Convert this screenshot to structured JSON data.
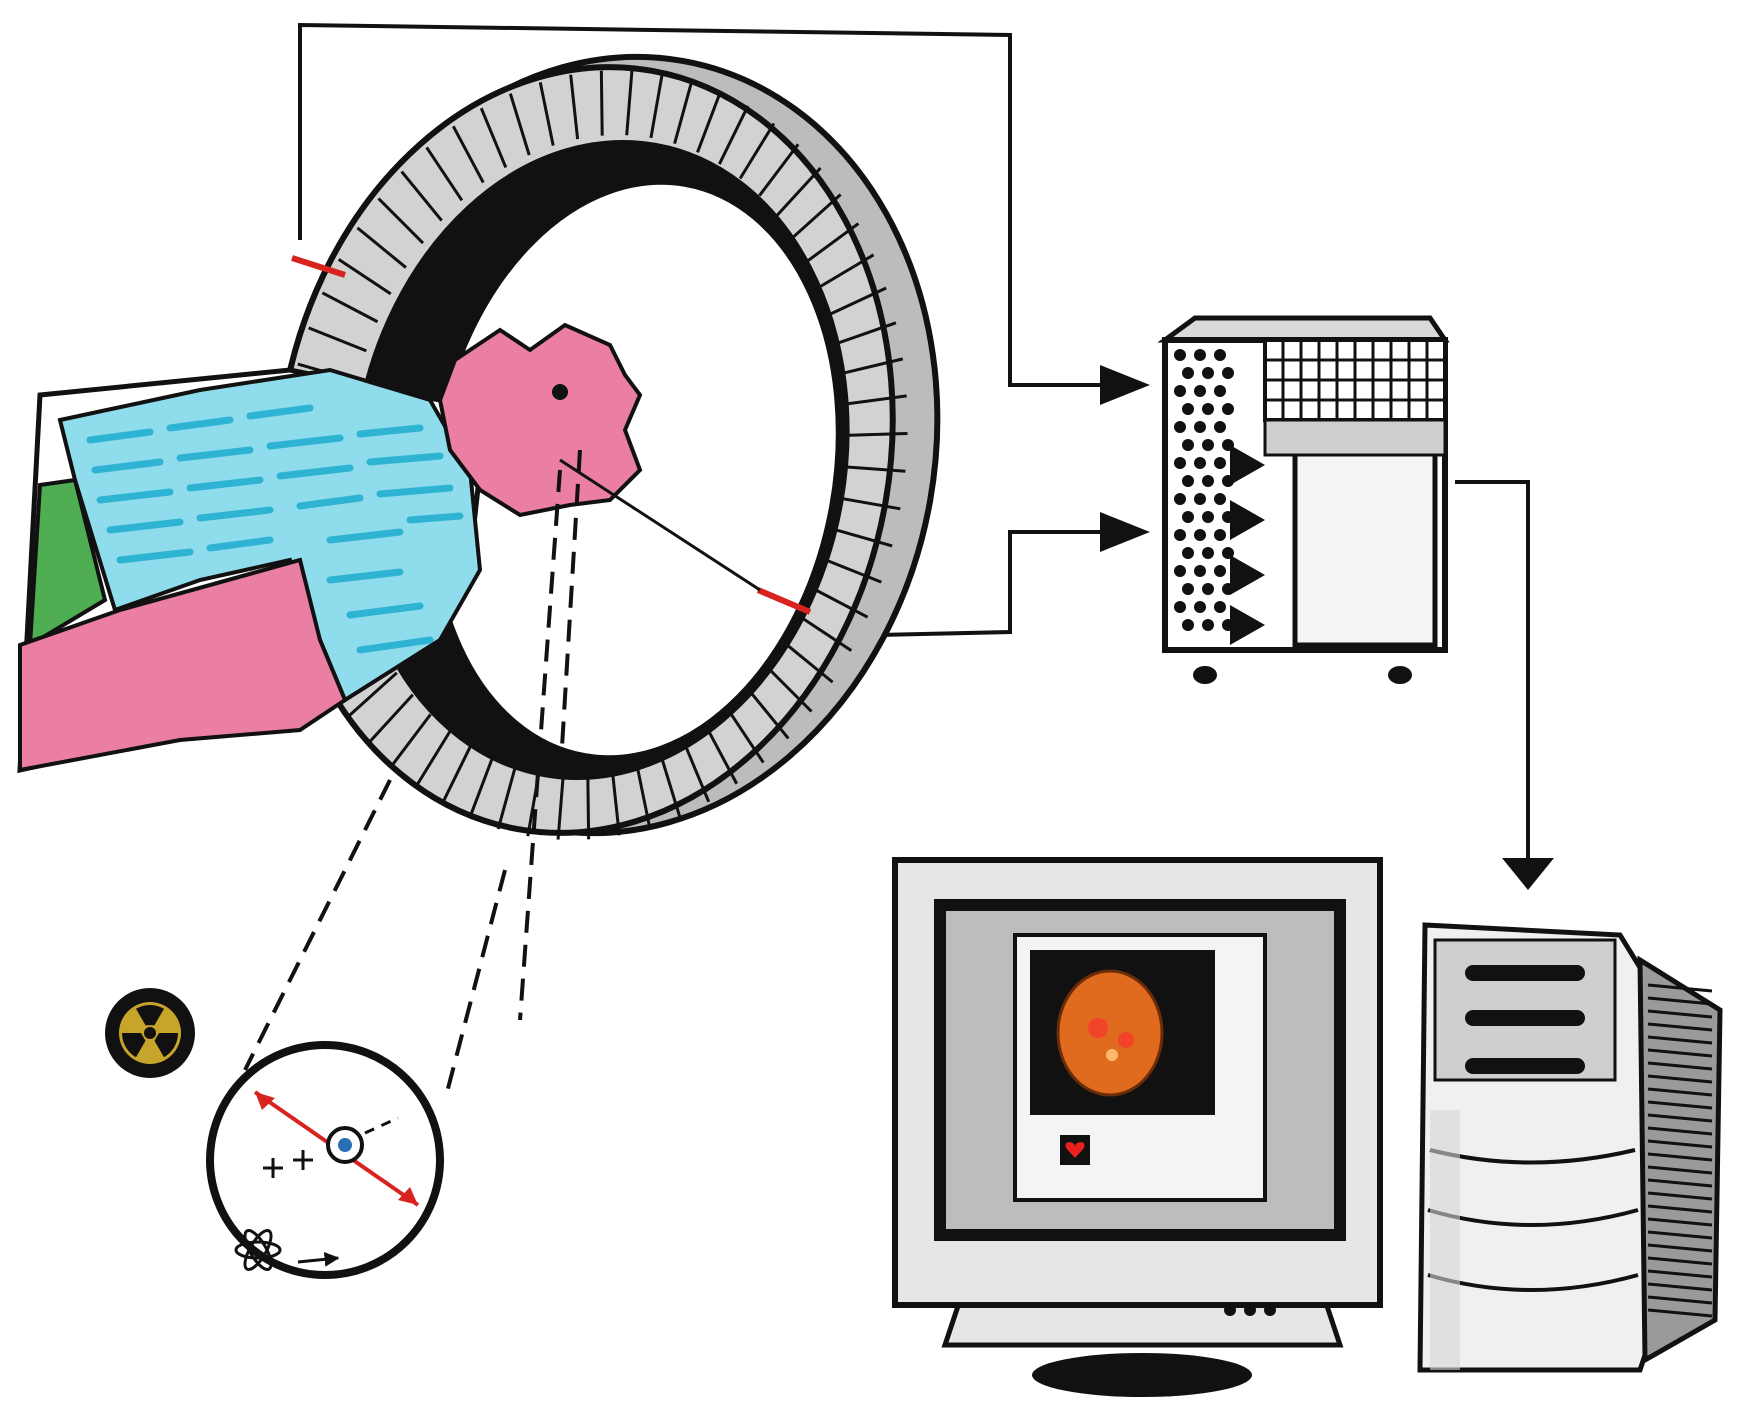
{
  "figure": {
    "kind": "hand-drawn schematic, no printed text",
    "components": [
      "pet-scanner-gantry",
      "patient",
      "detector-ring",
      "coincidence-processor",
      "computer-monitor",
      "computer-tower",
      "radiation-symbol-icon",
      "annihilation-event-inset"
    ]
  },
  "colors": {
    "ink": "#111111",
    "ring_gray": "#cfcfcf",
    "ring_gray_dark": "#9a9a9a",
    "bed_cyan": "#59c8e0",
    "skin_pink": "#ea7fa3",
    "pillow_green": "#4fae52",
    "line_of_response_red": "#d8231f",
    "image_orange": "#e06a1e",
    "radiation_yellow": "#c7a42a",
    "positron_blue": "#2a6fb5"
  }
}
